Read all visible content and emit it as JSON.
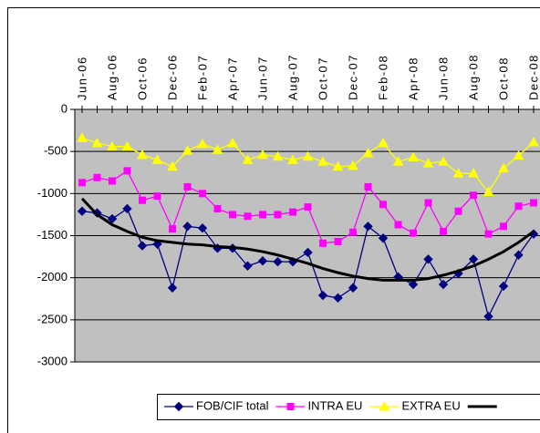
{
  "chart_data": {
    "type": "line",
    "categories": [
      "Jun-06",
      null,
      "Aug-06",
      null,
      "Oct-06",
      null,
      "Dec-06",
      null,
      "Feb-07",
      null,
      "Apr-07",
      null,
      "Jun-07",
      null,
      "Aug-07",
      null,
      "Oct-07",
      null,
      "Dec-07",
      null,
      "Feb-08",
      null,
      "Apr-08",
      null,
      "Jun-08",
      null,
      "Aug-08",
      null,
      "Oct-08",
      null,
      "Dec-08"
    ],
    "series": [
      {
        "name": "FOB/CIF total",
        "color": "#000080",
        "marker": "diamond",
        "values": [
          -1210,
          -1230,
          -1300,
          -1180,
          -1620,
          -1600,
          -2120,
          -1390,
          -1410,
          -1650,
          -1650,
          -1860,
          -1800,
          -1810,
          -1810,
          -1700,
          -2210,
          -2240,
          -2120,
          -1390,
          -1530,
          -1990,
          -2080,
          -1780,
          -2080,
          -1950,
          -1780,
          -2460,
          -2100,
          -1730,
          -1480
        ]
      },
      {
        "name": "INTRA EU",
        "color": "#ff00ff",
        "marker": "square",
        "values": [
          -870,
          -810,
          -850,
          -730,
          -1080,
          -1030,
          -1420,
          -920,
          -1000,
          -1180,
          -1250,
          -1270,
          -1250,
          -1250,
          -1220,
          -1160,
          -1590,
          -1570,
          -1460,
          -920,
          -1130,
          -1370,
          -1470,
          -1110,
          -1450,
          -1210,
          -1020,
          -1480,
          -1390,
          -1150,
          -1110
        ]
      },
      {
        "name": "EXTRA EU",
        "color": "#ffff00",
        "marker": "triangle",
        "values": [
          -340,
          -400,
          -440,
          -440,
          -540,
          -600,
          -680,
          -490,
          -410,
          -480,
          -400,
          -600,
          -540,
          -560,
          -600,
          -560,
          -620,
          -680,
          -670,
          -520,
          -400,
          -620,
          -570,
          -640,
          -620,
          -760,
          -760,
          -980,
          -700,
          -550,
          -390
        ]
      },
      {
        "color": "#000000",
        "marker": "none",
        "values": [
          -1060,
          -1250,
          -1370,
          -1450,
          -1520,
          -1560,
          -1580,
          -1600,
          -1610,
          -1630,
          -1640,
          -1660,
          -1690,
          -1730,
          -1780,
          -1830,
          -1890,
          -1940,
          -1980,
          -2010,
          -2030,
          -2030,
          -2030,
          -2010,
          -1970,
          -1920,
          -1860,
          -1780,
          -1690,
          -1580,
          -1450
        ]
      }
    ],
    "ylim": [
      -3000,
      0
    ],
    "yticks": [
      0,
      -500,
      -1000,
      -1500,
      -2000,
      -2500,
      -3000
    ],
    "grid": true,
    "plot_background": "#c0c0c0",
    "legend": "bottom"
  }
}
